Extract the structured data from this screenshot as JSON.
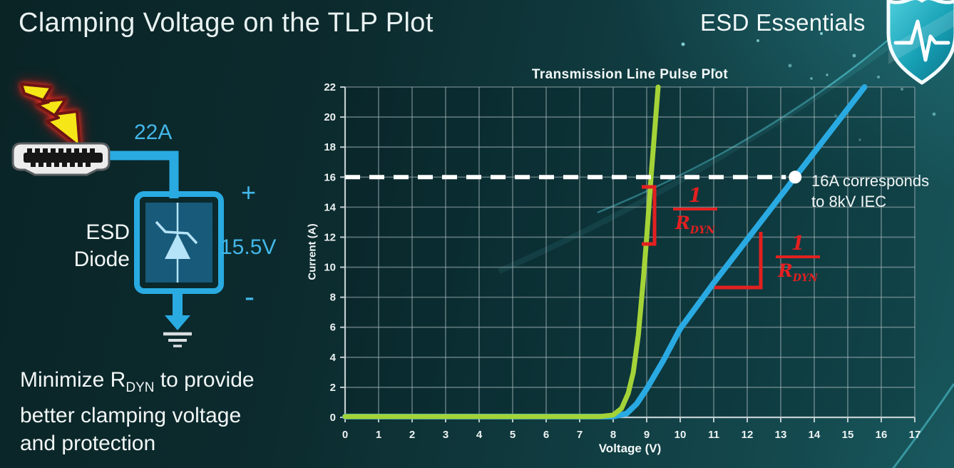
{
  "slide": {
    "title": "Clamping Voltage on the TLP Plot"
  },
  "brand": {
    "name": "ESD Essentials",
    "icon": "shield-pulse-icon"
  },
  "diagram": {
    "surge_current": "22A",
    "device_line1": "ESD",
    "device_line2": "Diode",
    "polarity_plus": "+",
    "clamp_voltage": "15.5V",
    "polarity_minus": "-",
    "wire_color": "#29abe2",
    "bolt_color": "#f5e617"
  },
  "note": {
    "line1_pre": "Minimize R",
    "line1_sub": "DYN",
    "line1_post": " to provide",
    "line2": "better clamping voltage",
    "line3": "and protection"
  },
  "chart_data": {
    "type": "line",
    "title": "Transmission Line Pulse Plot",
    "xlabel": "Voltage (V)",
    "ylabel": "Current (A)",
    "xlim": [
      0,
      17
    ],
    "ylim": [
      0,
      22
    ],
    "x_ticks": [
      0,
      1,
      2,
      3,
      4,
      5,
      6,
      7,
      8,
      9,
      10,
      11,
      12,
      13,
      14,
      15,
      16,
      17
    ],
    "y_ticks": [
      0,
      2,
      4,
      6,
      8,
      10,
      12,
      14,
      16,
      18,
      20,
      22
    ],
    "grid": true,
    "legend": "none",
    "series": [
      {
        "name": "low-rdyn-esd-diode",
        "color": "#a4d338",
        "width": 7,
        "points": [
          [
            0,
            0.05
          ],
          [
            7.6,
            0.05
          ],
          [
            8.0,
            0.15
          ],
          [
            8.25,
            0.6
          ],
          [
            8.45,
            1.6
          ],
          [
            8.6,
            3.0
          ],
          [
            8.75,
            5.5
          ],
          [
            8.9,
            9.2
          ],
          [
            9.0,
            12.0
          ],
          [
            9.13,
            16.0
          ],
          [
            9.34,
            22.0
          ]
        ]
      },
      {
        "name": "high-rdyn-esd-diode",
        "color": "#2aaae2",
        "width": 8,
        "points": [
          [
            0,
            0.05
          ],
          [
            8.0,
            0.05
          ],
          [
            8.4,
            0.25
          ],
          [
            8.7,
            0.9
          ],
          [
            9.0,
            1.9
          ],
          [
            9.5,
            3.8
          ],
          [
            10,
            5.9
          ],
          [
            11,
            8.95
          ],
          [
            12,
            11.85
          ],
          [
            13,
            14.75
          ],
          [
            13.43,
            16.0
          ],
          [
            14,
            17.65
          ],
          [
            15,
            20.55
          ],
          [
            15.5,
            22.0
          ]
        ]
      }
    ],
    "annotations": {
      "threshold_current": 16,
      "marker": {
        "voltage": 13.43,
        "current": 16
      },
      "marker_label_line1": "16A corresponds",
      "marker_label_line2": "to 8kV IEC",
      "slope_label": {
        "numerator": "1",
        "denominator": "R",
        "denominator_sub": "DYN"
      },
      "annotation_color": "#e32020"
    }
  }
}
